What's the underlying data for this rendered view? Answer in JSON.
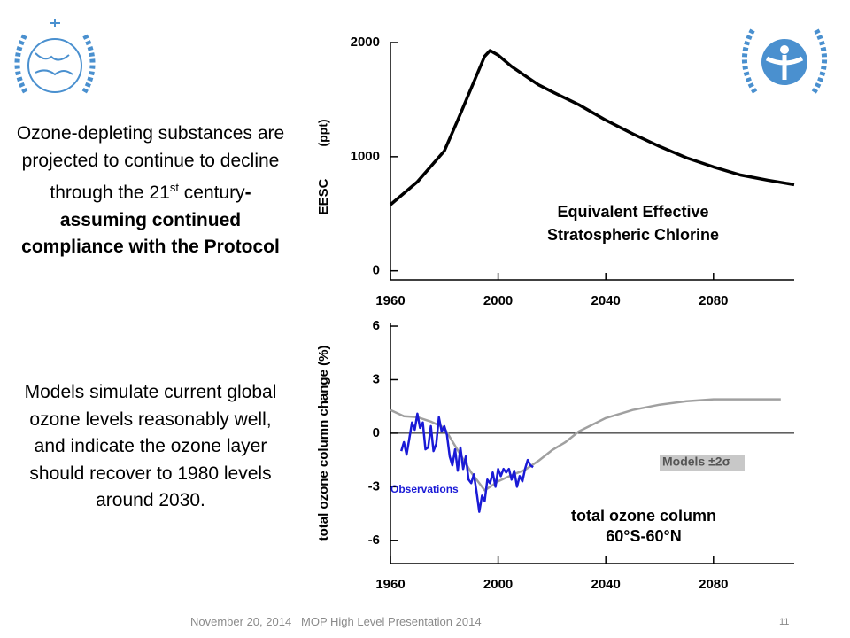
{
  "chart_data": [
    {
      "type": "line",
      "ylabel": "EESC",
      "yunit": "(ppt)",
      "annotation": [
        "Equivalent Effective",
        "Stratospheric Chlorine"
      ],
      "xlim": [
        1960,
        2110
      ],
      "xticks": [
        1960,
        2000,
        2040,
        2080
      ],
      "ylim": [
        -80,
        2000
      ],
      "yticks": [
        0,
        1000,
        2000
      ],
      "series": [
        {
          "color": "#000000",
          "x": [
            1960,
            1970,
            1980,
            1985,
            1990,
            1995,
            1997,
            2000,
            2005,
            2010,
            2015,
            2020,
            2030,
            2040,
            2050,
            2060,
            2070,
            2080,
            2090,
            2100,
            2110
          ],
          "values": [
            580,
            780,
            1050,
            1320,
            1600,
            1880,
            1930,
            1890,
            1790,
            1710,
            1630,
            1570,
            1455,
            1320,
            1200,
            1090,
            990,
            910,
            840,
            795,
            755
          ]
        }
      ]
    },
    {
      "type": "line",
      "ylabel": "total ozone column change (%)",
      "annotation": [
        "total ozone column",
        "60°S-60°N"
      ],
      "hline": 0,
      "xlim": [
        1960,
        2110
      ],
      "xticks": [
        1960,
        2000,
        2040,
        2080
      ],
      "ylim": [
        -7.3,
        6.2
      ],
      "yticks": [
        -6,
        -3,
        0,
        3,
        6
      ],
      "series": [
        {
          "name": "Models ±2σ",
          "color": "#a0a0a0",
          "x": [
            1960,
            1965,
            1970,
            1975,
            1980,
            1985,
            1990,
            1995,
            2000,
            2005,
            2010,
            2015,
            2020,
            2025,
            2030,
            2040,
            2050,
            2060,
            2070,
            2080,
            2090,
            2100,
            2105
          ],
          "values": [
            1.3,
            0.95,
            0.9,
            0.65,
            0.3,
            -0.95,
            -2.2,
            -3.2,
            -2.7,
            -2.35,
            -2.05,
            -1.55,
            -0.95,
            -0.5,
            0.1,
            0.85,
            1.3,
            1.6,
            1.8,
            1.9,
            1.9,
            1.9,
            1.9
          ]
        },
        {
          "name": "Observations",
          "color": "#1a1ad6",
          "x": [
            1964,
            1965,
            1966,
            1967,
            1968,
            1969,
            1970,
            1971,
            1972,
            1973,
            1974,
            1975,
            1976,
            1977,
            1978,
            1979,
            1980,
            1981,
            1982,
            1983,
            1984,
            1985,
            1986,
            1987,
            1988,
            1989,
            1990,
            1991,
            1992,
            1993,
            1994,
            1995,
            1996,
            1997,
            1998,
            1999,
            2000,
            2001,
            2002,
            2003,
            2004,
            2005,
            2006,
            2007,
            2008,
            2009,
            2010,
            2011,
            2012,
            2013
          ],
          "values": [
            -1.0,
            -0.5,
            -1.2,
            -0.3,
            0.6,
            0.2,
            1.1,
            0.3,
            0.6,
            -0.9,
            -0.8,
            0.4,
            -1.0,
            -0.6,
            0.9,
            0.1,
            0.4,
            -0.1,
            -1.3,
            -1.8,
            -0.9,
            -2.1,
            -0.8,
            -2.0,
            -1.3,
            -2.6,
            -2.8,
            -2.3,
            -3.3,
            -4.4,
            -3.5,
            -3.8,
            -2.6,
            -2.8,
            -2.2,
            -3.0,
            -2.0,
            -2.4,
            -2.0,
            -2.2,
            -2.0,
            -2.6,
            -2.1,
            -3.0,
            -2.4,
            -2.7,
            -2.0,
            -1.5,
            -1.8,
            -1.9
          ]
        }
      ]
    }
  ],
  "slide": {
    "paragraph1": {
      "text": "Ozone-depleting substances are projected to continue to decline through the 21",
      "sup": "st",
      "text2": " century",
      "bold": "- assuming continued compliance with the Protocol"
    },
    "paragraph2": "Models simulate current global ozone levels reasonably well, and indicate the ozone layer should recover to 1980 levels around 2030.",
    "footer": {
      "date": "November 20, 2014",
      "title": "MOP High Level Presentation 2014",
      "page": "11"
    }
  }
}
